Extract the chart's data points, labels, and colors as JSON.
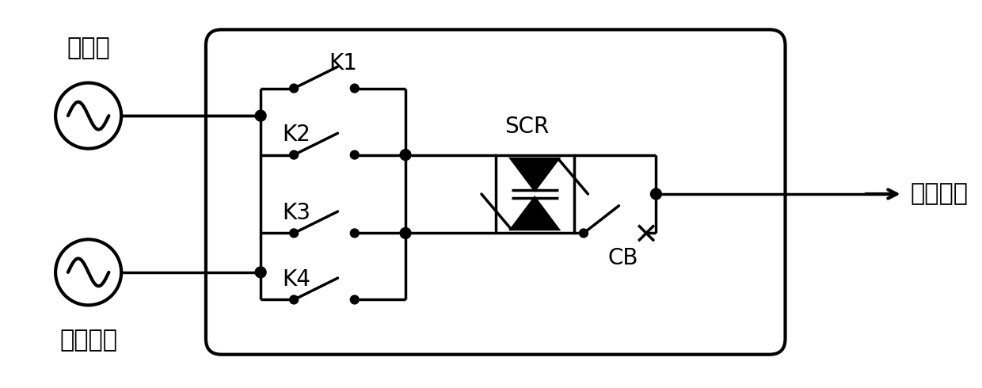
{
  "bg_color": "#ffffff",
  "line_color": "#000000",
  "line_width": 2.5,
  "figsize": [
    12.4,
    4.9
  ],
  "dpi": 100,
  "labels": {
    "main_source": "主电源",
    "backup_source": "备用电源",
    "load": "用电设备",
    "K1": "K1",
    "K2": "K2",
    "K3": "K3",
    "K4": "K4",
    "SCR": "SCR",
    "CB": "CB"
  },
  "font_size": 20
}
